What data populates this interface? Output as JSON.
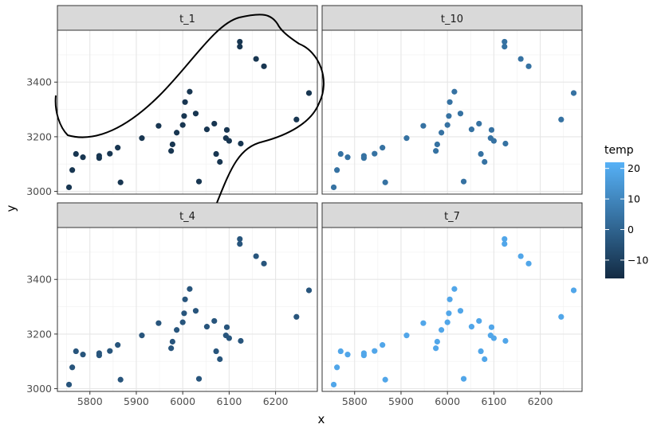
{
  "chart_data": {
    "type": "scatter",
    "xlabel": "x",
    "ylabel": "y",
    "xlim": [
      5730,
      6290
    ],
    "ylim": [
      2990,
      3590
    ],
    "x_ticks": [
      5800,
      5900,
      6000,
      6100,
      6200
    ],
    "x_tick_labels": [
      "5800",
      "5900",
      "6000",
      "6100",
      "6200"
    ],
    "y_ticks": [
      3000,
      3200,
      3400
    ],
    "y_tick_labels": [
      "3000",
      "3200",
      "3400"
    ],
    "grid": true,
    "legend": {
      "title": "temp",
      "placement": "right",
      "color_range": [
        -16,
        22
      ],
      "low_color": "#132B43",
      "high_color": "#56B1F7",
      "ticks": [
        20,
        10,
        0,
        -10
      ],
      "tick_labels": [
        "20",
        "10",
        "0",
        "−10"
      ]
    },
    "points": [
      {
        "x": 5755,
        "y": 3015
      },
      {
        "x": 5762,
        "y": 3078
      },
      {
        "x": 5770,
        "y": 3137
      },
      {
        "x": 5785,
        "y": 3125
      },
      {
        "x": 5820,
        "y": 3122
      },
      {
        "x": 5820,
        "y": 3130
      },
      {
        "x": 5843,
        "y": 3138
      },
      {
        "x": 5860,
        "y": 3160
      },
      {
        "x": 5866,
        "y": 3033
      },
      {
        "x": 5912,
        "y": 3195
      },
      {
        "x": 5948,
        "y": 3240
      },
      {
        "x": 5975,
        "y": 3148
      },
      {
        "x": 5978,
        "y": 3172
      },
      {
        "x": 5987,
        "y": 3215
      },
      {
        "x": 6000,
        "y": 3243
      },
      {
        "x": 6003,
        "y": 3276
      },
      {
        "x": 6005,
        "y": 3327
      },
      {
        "x": 6015,
        "y": 3365
      },
      {
        "x": 6028,
        "y": 3285
      },
      {
        "x": 6035,
        "y": 3036
      },
      {
        "x": 6052,
        "y": 3227
      },
      {
        "x": 6068,
        "y": 3248
      },
      {
        "x": 6072,
        "y": 3137
      },
      {
        "x": 6080,
        "y": 3108
      },
      {
        "x": 6093,
        "y": 3195
      },
      {
        "x": 6095,
        "y": 3225
      },
      {
        "x": 6100,
        "y": 3185
      },
      {
        "x": 6123,
        "y": 3548
      },
      {
        "x": 6123,
        "y": 3530
      },
      {
        "x": 6125,
        "y": 3175
      },
      {
        "x": 6158,
        "y": 3485
      },
      {
        "x": 6175,
        "y": 3458
      },
      {
        "x": 6245,
        "y": 3263
      },
      {
        "x": 6272,
        "y": 3360
      }
    ],
    "facets": [
      {
        "label": "t_1",
        "temp": -13
      },
      {
        "label": "t_10",
        "temp": 4
      },
      {
        "label": "t_4",
        "temp": -4
      },
      {
        "label": "t_7",
        "temp": 19
      }
    ]
  }
}
